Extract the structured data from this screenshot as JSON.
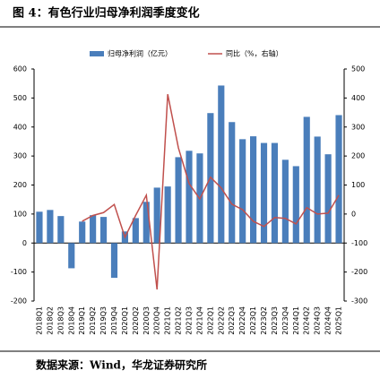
{
  "chart_data": {
    "type": "bar-line",
    "title": "图 4：有色行业归母净利润季度变化",
    "source": "数据来源：Wind，华龙证券研究所",
    "categories": [
      "2018Q1",
      "2018Q2",
      "2018Q3",
      "2018Q4",
      "2019Q1",
      "2019Q2",
      "2019Q3",
      "2019Q4",
      "2020Q1",
      "2020Q2",
      "2020Q3",
      "2020Q4",
      "2021Q1",
      "2021Q2",
      "2021Q3",
      "2021Q4",
      "2022Q1",
      "2022Q2",
      "2022Q3",
      "2022Q4",
      "2023Q1",
      "2023Q2",
      "2023Q3",
      "2023Q4",
      "2024Q1",
      "2024Q2",
      "2024Q3",
      "2024Q4",
      "2025Q1"
    ],
    "series": [
      {
        "name": "归母净利润（亿元）",
        "color": "#4a7ebb",
        "type": "bar",
        "values": [
          108,
          114,
          93,
          -87,
          74,
          96,
          90,
          -120,
          40,
          86,
          142,
          191,
          195,
          296,
          318,
          309,
          448,
          543,
          417,
          358,
          368,
          345,
          345,
          287,
          265,
          435,
          367,
          306,
          441
        ]
      },
      {
        "name": "同比（%，右轴）",
        "color": "#c0504d",
        "type": "line",
        "axis": "y2",
        "values": [
          null,
          null,
          null,
          null,
          -25,
          -5,
          5,
          33,
          -80,
          -5,
          65,
          -260,
          413,
          228,
          105,
          52,
          127,
          90,
          34,
          15,
          -25,
          -43,
          -12,
          -15,
          -34,
          22,
          0,
          3,
          65
        ]
      }
    ],
    "ylim": [
      -200,
      600
    ],
    "yticks": [
      -200,
      -100,
      0,
      100,
      200,
      300,
      400,
      500,
      600
    ],
    "y2lim": [
      -300,
      500
    ],
    "y2ticks": [
      -300,
      -200,
      -100,
      0,
      100,
      200,
      300,
      400,
      500
    ],
    "grid": false,
    "legend": "top"
  }
}
